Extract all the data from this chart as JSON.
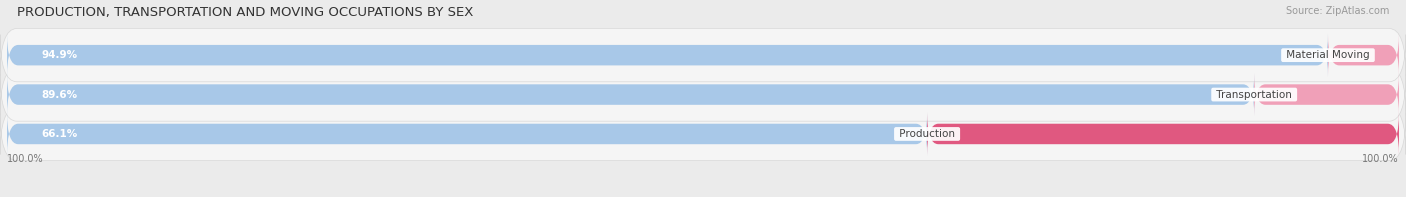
{
  "title": "PRODUCTION, TRANSPORTATION AND MOVING OCCUPATIONS BY SEX",
  "source": "Source: ZipAtlas.com",
  "categories": [
    "Material Moving",
    "Transportation",
    "Production"
  ],
  "male_pct": [
    94.9,
    89.6,
    66.1
  ],
  "female_pct": [
    5.1,
    10.4,
    33.9
  ],
  "male_color": "#a8c8e8",
  "female_color_mm": "#f0a0b8",
  "female_color_tr": "#f0a0b8",
  "female_color_pr": "#e05880",
  "bg_color": "#ebebeb",
  "bar_bg_color": "#f5f5f5",
  "bar_bg_border": "#d8d8d8",
  "title_fontsize": 9.5,
  "source_fontsize": 7,
  "label_fontsize": 7.5,
  "pct_fontsize": 7.5,
  "tick_fontsize": 7,
  "legend_fontsize": 8
}
